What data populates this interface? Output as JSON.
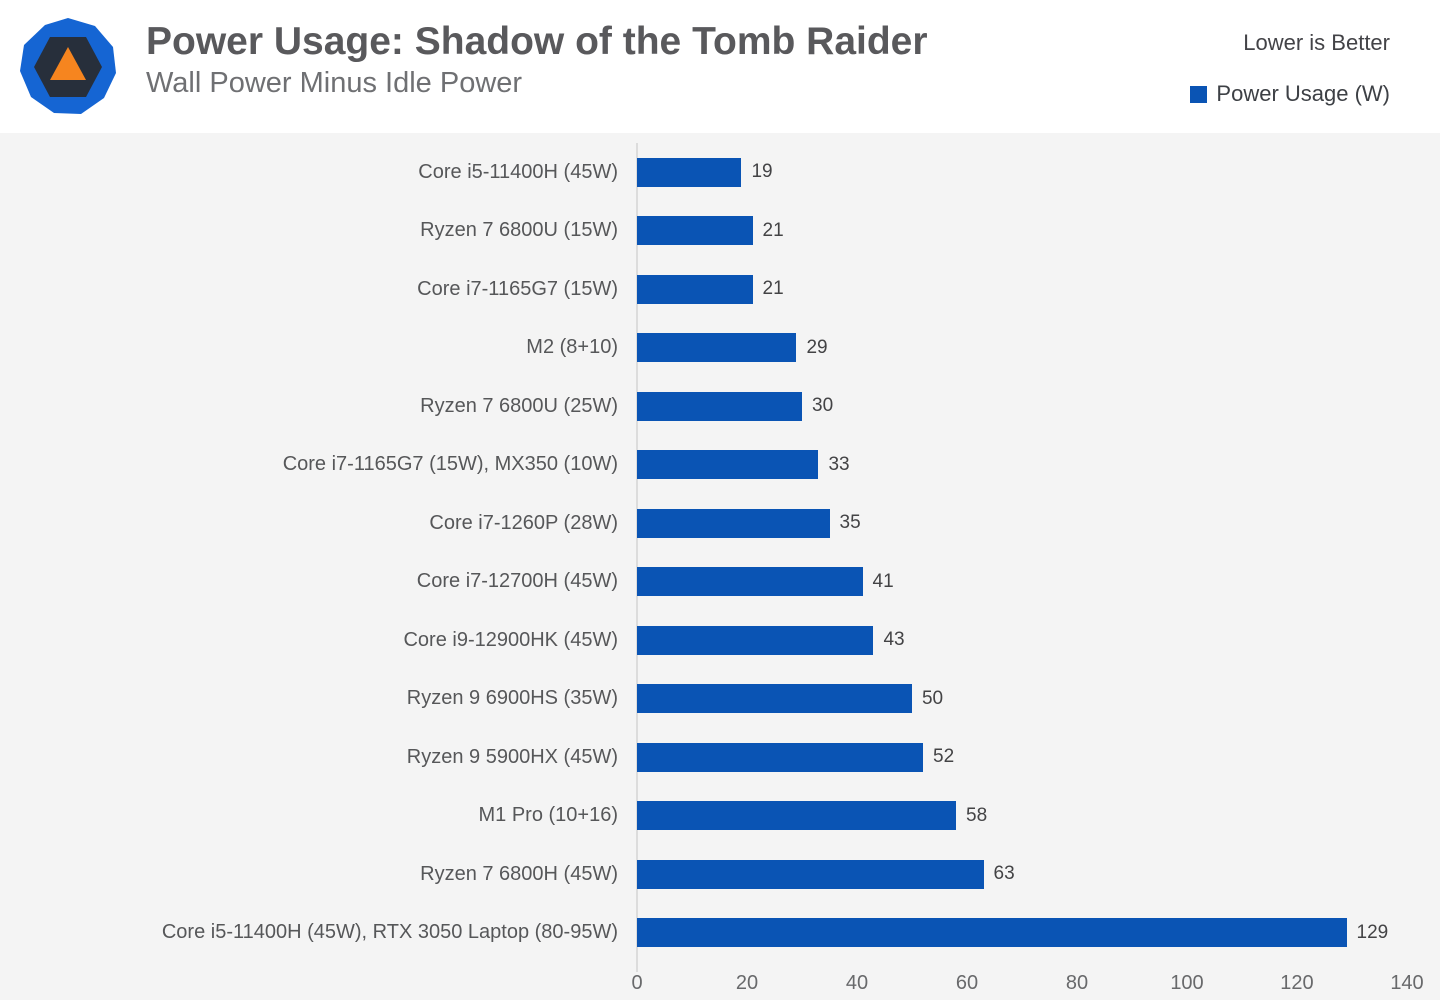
{
  "header": {
    "title": "Power Usage: Shadow of the Tomb Raider",
    "subtitle": "Wall Power Minus Idle Power",
    "note": "Lower is Better",
    "legend_label": "Power Usage (W)"
  },
  "colors": {
    "bar": "#0a54b4",
    "chart_background": "#f4f4f4",
    "header_background": "#ffffff",
    "logo_blue": "#1565d3",
    "logo_dark": "#272f3b",
    "logo_orange": "#f6851f"
  },
  "chart_data": {
    "type": "bar",
    "orientation": "horizontal",
    "title": "Power Usage: Shadow of the Tomb Raider",
    "subtitle": "Wall Power Minus Idle Power",
    "note": "Lower is Better",
    "legend": [
      "Power Usage (W)"
    ],
    "legend_position": "top-right",
    "grid": false,
    "value_labels": true,
    "xlabel": "",
    "ylabel": "",
    "xlim": [
      0,
      140
    ],
    "xticks": [
      0,
      20,
      40,
      60,
      80,
      100,
      120,
      140
    ],
    "categories": [
      "Core i5-11400H (45W)",
      "Ryzen 7 6800U (15W)",
      "Core i7-1165G7 (15W)",
      "M2 (8+10)",
      "Ryzen 7 6800U (25W)",
      "Core i7-1165G7 (15W), MX350 (10W)",
      "Core i7-1260P (28W)",
      "Core i7-12700H (45W)",
      "Core i9-12900HK (45W)",
      "Ryzen 9 6900HS (35W)",
      "Ryzen 9 5900HX (45W)",
      "M1 Pro (10+16)",
      "Ryzen 7 6800H (45W)",
      "Core i5-11400H (45W), RTX 3050 Laptop (80-95W)"
    ],
    "values": [
      19,
      21,
      21,
      29,
      30,
      33,
      35,
      41,
      43,
      50,
      52,
      58,
      63,
      129
    ]
  }
}
